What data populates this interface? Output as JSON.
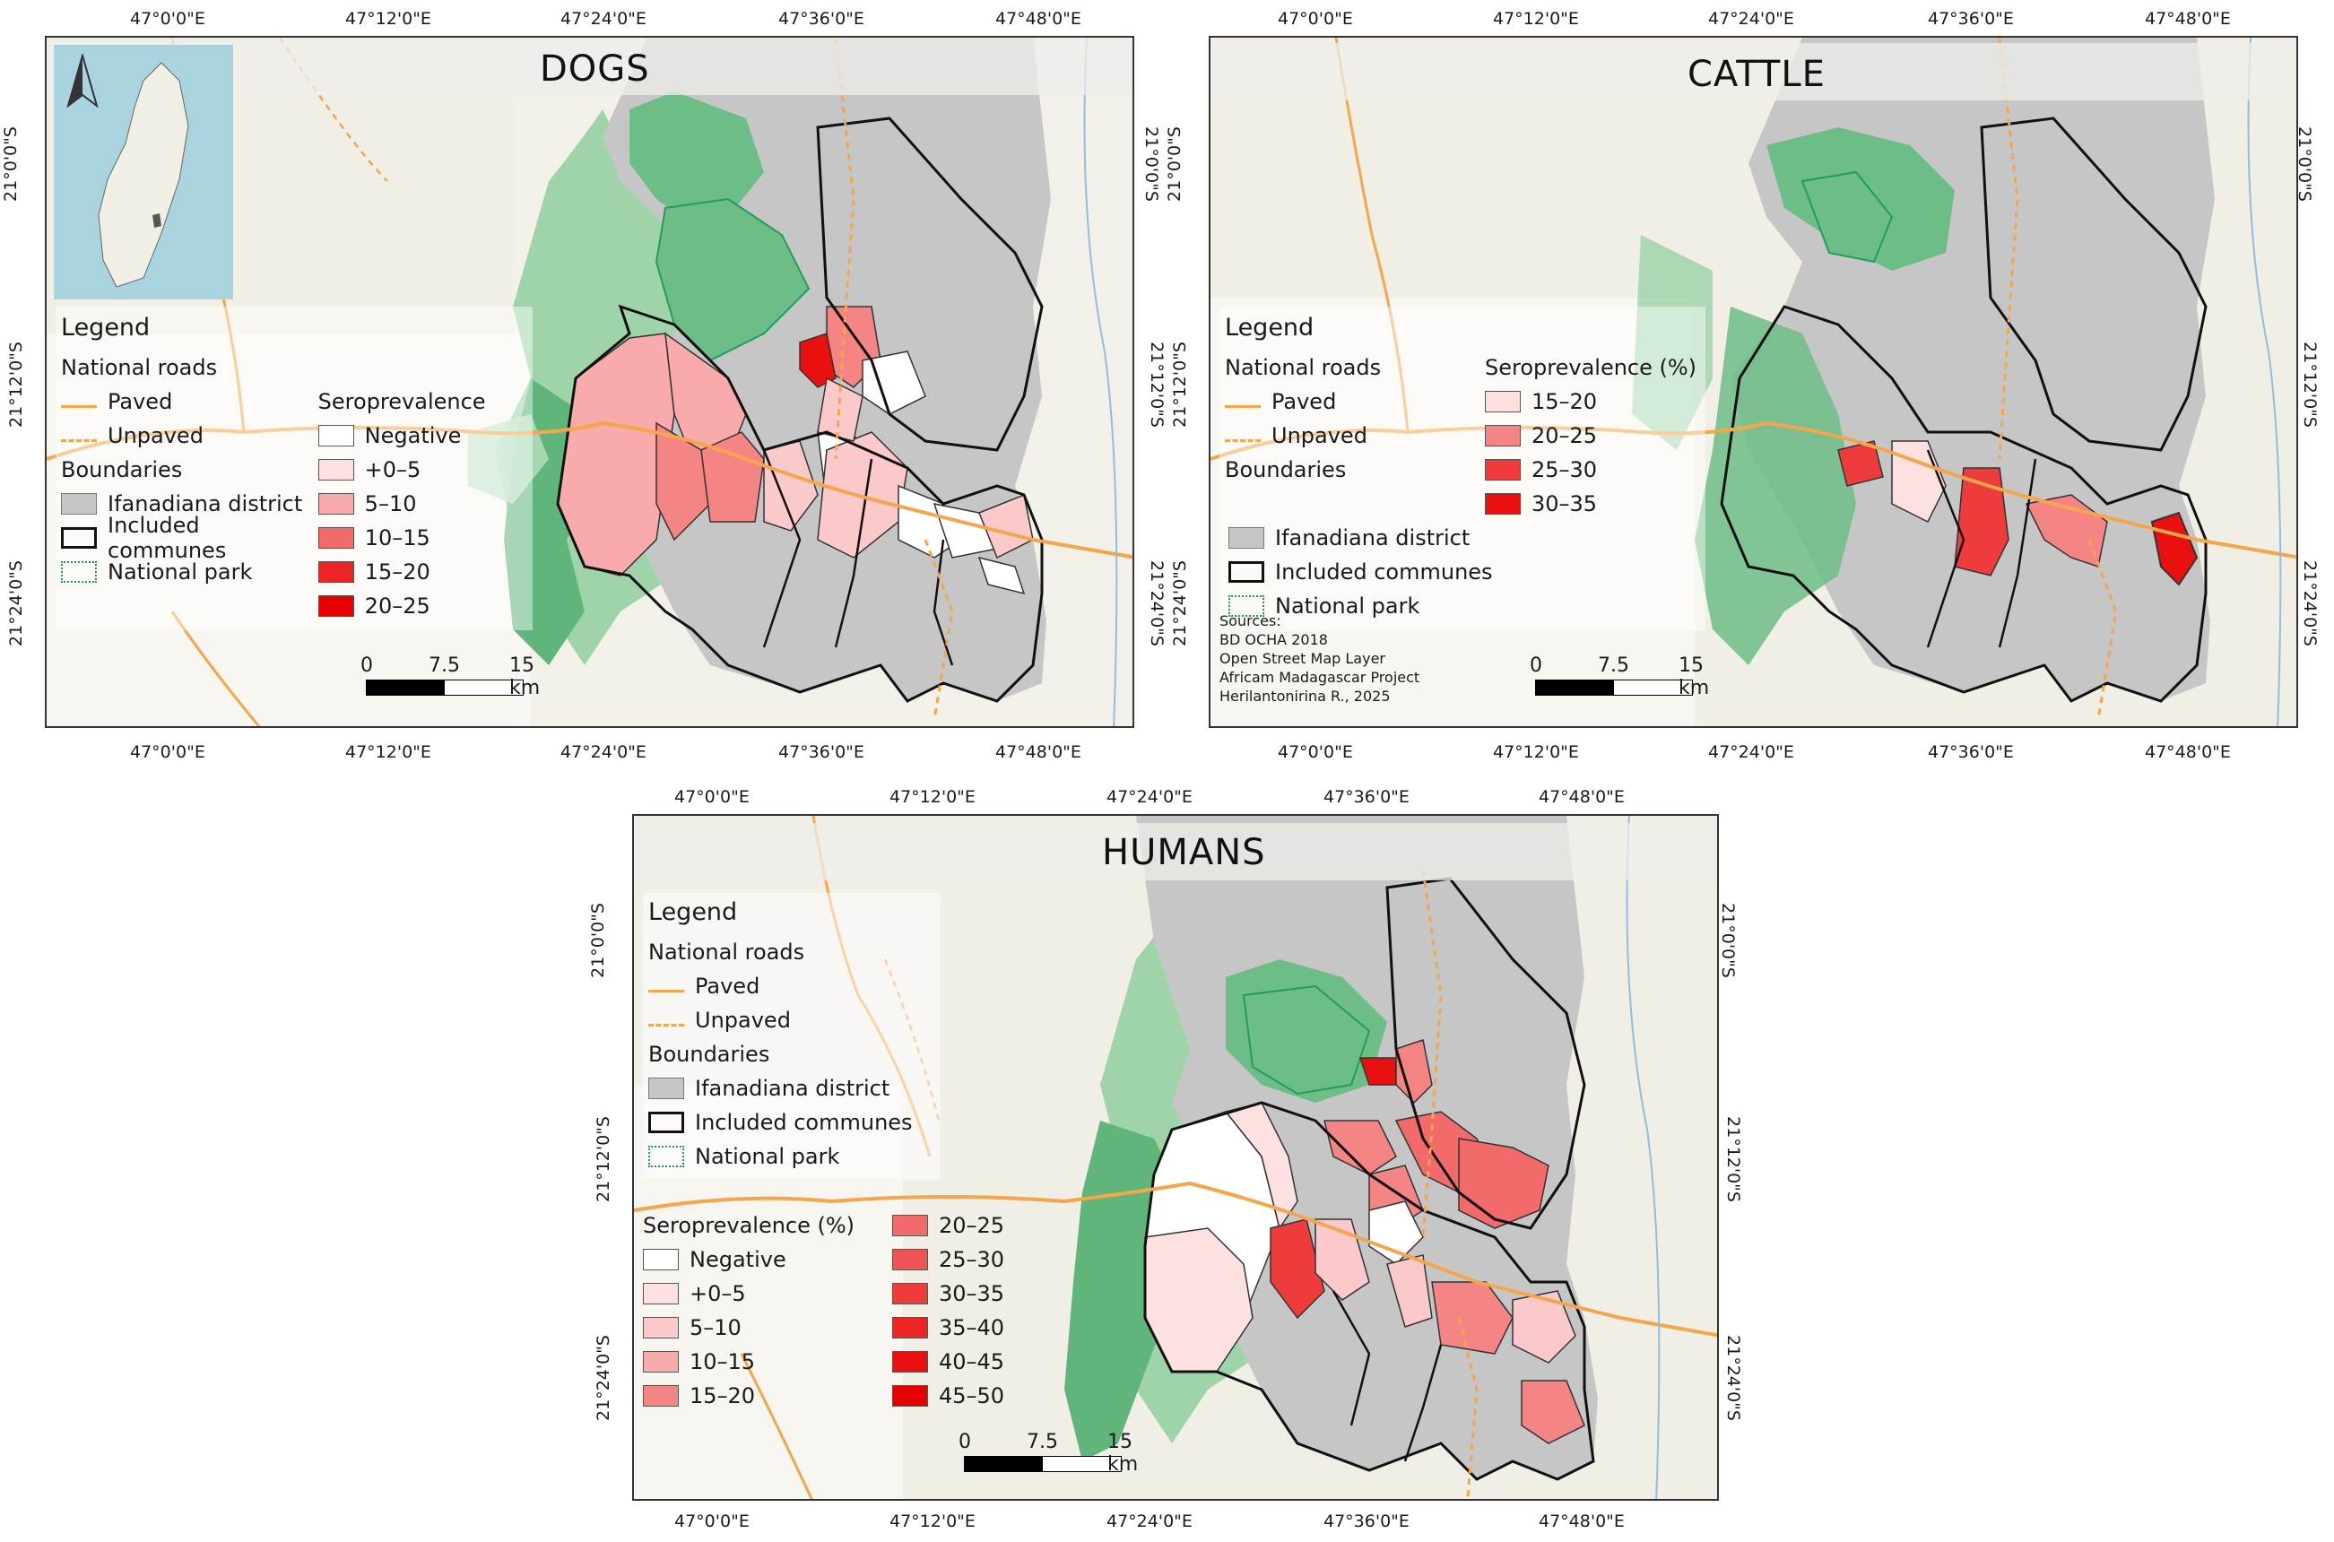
{
  "panels": {
    "dogs": {
      "title": "DOGS",
      "lon_ticks": [
        "47°0'0\"E",
        "47°12'0\"E",
        "47°24'0\"E",
        "47°36'0\"E",
        "47°48'0\"E"
      ],
      "lat_ticks": [
        "21°0'0\"S",
        "21°12'0\"S",
        "21°24'0\"S"
      ],
      "legend": {
        "title": "Legend",
        "roads_title": "National roads",
        "paved": "Paved",
        "unpaved": "Unpaved",
        "boundaries_title": "Boundaries",
        "district": "Ifanadiana district",
        "communes": "Included communes",
        "park": "National park",
        "sero_title": "Seroprevalence (%)",
        "classes": [
          "Negative",
          "+0–5",
          "5–10",
          "10–15",
          "15–20",
          "20–25"
        ]
      },
      "scale": {
        "labels": [
          "0",
          "7.5",
          "15 km"
        ]
      }
    },
    "cattle": {
      "title": "CATTLE",
      "lon_ticks": [
        "47°0'0\"E",
        "47°12'0\"E",
        "47°24'0\"E",
        "47°36'0\"E",
        "47°48'0\"E"
      ],
      "lat_ticks": [
        "21°0'0\"S",
        "21°12'0\"S",
        "21°24'0\"S"
      ],
      "legend": {
        "title": "Legend",
        "roads_title": "National roads",
        "paved": "Paved",
        "unpaved": "Unpaved",
        "boundaries_title": "Boundaries",
        "district": "Ifanadiana district",
        "communes": "Included communes",
        "park": "National park",
        "sero_title": "Seroprevalence (%)",
        "classes": [
          "15–20",
          "20–25",
          "25–30",
          "30–35"
        ]
      },
      "sources": [
        "Sources:",
        "BD OCHA 2018",
        "Open Street Map Layer",
        "Africam Madagascar Project",
        "Herilantonirina R., 2025"
      ],
      "scale": {
        "labels": [
          "0",
          "7.5",
          "15 km"
        ]
      }
    },
    "humans": {
      "title": "HUMANS",
      "lon_ticks": [
        "47°0'0\"E",
        "47°12'0\"E",
        "47°24'0\"E",
        "47°36'0\"E",
        "47°48'0\"E"
      ],
      "lat_ticks": [
        "21°0'0\"S",
        "21°12'0\"S",
        "21°24'0\"S"
      ],
      "legend": {
        "title": "Legend",
        "roads_title": "National roads",
        "paved": "Paved",
        "unpaved": "Unpaved",
        "boundaries_title": "Boundaries",
        "district": "Ifanadiana district",
        "communes": "Included communes",
        "park": "National park",
        "sero_title": "Seroprevalence (%)",
        "classes_left": [
          "Negative",
          "+0–5",
          "5–10",
          "10–15",
          "15–20"
        ],
        "classes_right": [
          "20–25",
          "25–30",
          "30–35",
          "35–40",
          "40–45",
          "45–50"
        ]
      },
      "scale": {
        "labels": [
          "0",
          "7.5",
          "15 km"
        ]
      }
    }
  },
  "colors": {
    "district": "#c6c6c6",
    "park": "#6dbd86",
    "road": "#f5a64a",
    "ramp": [
      "#ffffff",
      "#fde0e0",
      "#fbc9c9",
      "#f9aaaa",
      "#f58585",
      "#f26a6a",
      "#ef5353",
      "#ee3c3c",
      "#ec2424",
      "#ea1010",
      "#e60000"
    ]
  }
}
